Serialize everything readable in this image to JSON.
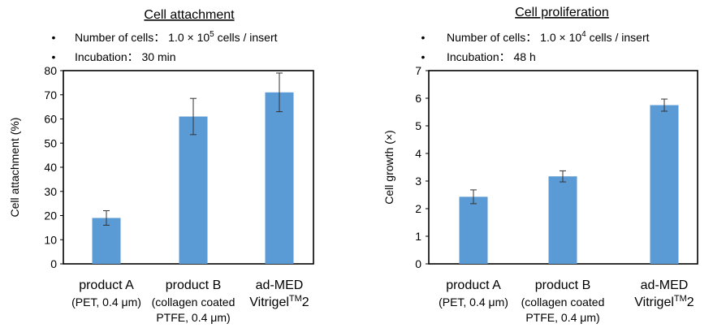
{
  "chart_data": [
    {
      "type": "bar",
      "title": "Cell attachment",
      "notes": [
        {
          "prefix": "Number of cells：",
          "value": "1.0 × 10",
          "sup": "5",
          "unit": " cells / insert"
        },
        {
          "prefix": "Incubation：",
          "value": "30 min",
          "sup": "",
          "unit": ""
        }
      ],
      "ylabel": "Cell attachment (%)",
      "ylim": [
        0,
        80
      ],
      "yticks": [
        "0",
        "10",
        "20",
        "30",
        "40",
        "50",
        "60",
        "70",
        "80"
      ],
      "categories": [
        {
          "name": "product A",
          "detail": [
            "(PET, 0.4 μm)"
          ]
        },
        {
          "name": "product B",
          "detail": [
            "(collagen coated",
            "PTFE, 0.4 μm)"
          ]
        },
        {
          "name": "ad-MED",
          "detail": [
            "Vitrigel",
            "TM",
            "2"
          ]
        }
      ],
      "values": [
        19,
        61,
        71
      ],
      "errors": [
        3,
        7.5,
        8
      ],
      "bar_color": "#5b9bd5",
      "grid": false
    },
    {
      "type": "bar",
      "title": "Cell proliferation",
      "notes": [
        {
          "prefix": "Number of cells：",
          "value": "1.0 × 10",
          "sup": "4",
          "unit": " cells / insert"
        },
        {
          "prefix": "Incubation：",
          "value": "48 h",
          "sup": "",
          "unit": ""
        }
      ],
      "ylabel": "Cell growth (×)",
      "ylim": [
        0,
        7
      ],
      "yticks": [
        "0",
        "1",
        "2",
        "3",
        "4",
        "5",
        "6",
        "7"
      ],
      "categories": [
        {
          "name": "product A",
          "detail": [
            "(PET, 0.4 μm)"
          ]
        },
        {
          "name": "product B",
          "detail": [
            "(collagen coated",
            "PTFE, 0.4 μm)"
          ]
        },
        {
          "name": "ad-MED",
          "detail": [
            "Vitrigel",
            "TM",
            "2"
          ]
        }
      ],
      "values": [
        2.43,
        3.17,
        5.75
      ],
      "errors": [
        0.25,
        0.2,
        0.22
      ],
      "bar_color": "#5b9bd5",
      "grid": false
    }
  ]
}
